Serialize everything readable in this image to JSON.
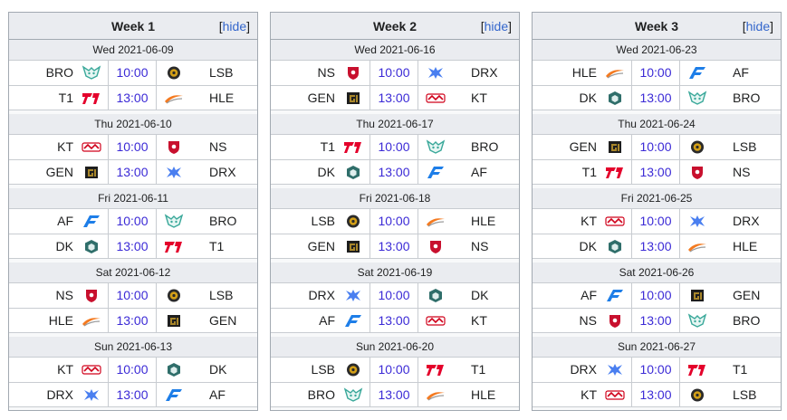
{
  "hide_label": "hide",
  "weeks": [
    {
      "title": "Week 1",
      "days": [
        {
          "date": "Wed 2021-06-09",
          "matches": [
            {
              "team1": "BRO",
              "time": "10:00",
              "team2": "LSB"
            },
            {
              "team1": "T1",
              "time": "13:00",
              "team2": "HLE"
            }
          ]
        },
        {
          "date": "Thu 2021-06-10",
          "matches": [
            {
              "team1": "KT",
              "time": "10:00",
              "team2": "NS"
            },
            {
              "team1": "GEN",
              "time": "13:00",
              "team2": "DRX"
            }
          ]
        },
        {
          "date": "Fri 2021-06-11",
          "matches": [
            {
              "team1": "AF",
              "time": "10:00",
              "team2": "BRO"
            },
            {
              "team1": "DK",
              "time": "13:00",
              "team2": "T1"
            }
          ]
        },
        {
          "date": "Sat 2021-06-12",
          "matches": [
            {
              "team1": "NS",
              "time": "10:00",
              "team2": "LSB"
            },
            {
              "team1": "HLE",
              "time": "13:00",
              "team2": "GEN"
            }
          ]
        },
        {
          "date": "Sun 2021-06-13",
          "matches": [
            {
              "team1": "KT",
              "time": "10:00",
              "team2": "DK"
            },
            {
              "team1": "DRX",
              "time": "13:00",
              "team2": "AF"
            }
          ]
        }
      ]
    },
    {
      "title": "Week 2",
      "days": [
        {
          "date": "Wed 2021-06-16",
          "matches": [
            {
              "team1": "NS",
              "time": "10:00",
              "team2": "DRX"
            },
            {
              "team1": "GEN",
              "time": "13:00",
              "team2": "KT"
            }
          ]
        },
        {
          "date": "Thu 2021-06-17",
          "matches": [
            {
              "team1": "T1",
              "time": "10:00",
              "team2": "BRO"
            },
            {
              "team1": "DK",
              "time": "13:00",
              "team2": "AF"
            }
          ]
        },
        {
          "date": "Fri 2021-06-18",
          "matches": [
            {
              "team1": "LSB",
              "time": "10:00",
              "team2": "HLE"
            },
            {
              "team1": "GEN",
              "time": "13:00",
              "team2": "NS"
            }
          ]
        },
        {
          "date": "Sat 2021-06-19",
          "matches": [
            {
              "team1": "DRX",
              "time": "10:00",
              "team2": "DK"
            },
            {
              "team1": "AF",
              "time": "13:00",
              "team2": "KT"
            }
          ]
        },
        {
          "date": "Sun 2021-06-20",
          "matches": [
            {
              "team1": "LSB",
              "time": "10:00",
              "team2": "T1"
            },
            {
              "team1": "BRO",
              "time": "13:00",
              "team2": "HLE"
            }
          ]
        }
      ]
    },
    {
      "title": "Week 3",
      "days": [
        {
          "date": "Wed 2021-06-23",
          "matches": [
            {
              "team1": "HLE",
              "time": "10:00",
              "team2": "AF"
            },
            {
              "team1": "DK",
              "time": "13:00",
              "team2": "BRO"
            }
          ]
        },
        {
          "date": "Thu 2021-06-24",
          "matches": [
            {
              "team1": "GEN",
              "time": "10:00",
              "team2": "LSB"
            },
            {
              "team1": "T1",
              "time": "13:00",
              "team2": "NS"
            }
          ]
        },
        {
          "date": "Fri 2021-06-25",
          "matches": [
            {
              "team1": "KT",
              "time": "10:00",
              "team2": "DRX"
            },
            {
              "team1": "DK",
              "time": "13:00",
              "team2": "HLE"
            }
          ]
        },
        {
          "date": "Sat 2021-06-26",
          "matches": [
            {
              "team1": "AF",
              "time": "10:00",
              "team2": "GEN"
            },
            {
              "team1": "NS",
              "time": "13:00",
              "team2": "BRO"
            }
          ]
        },
        {
          "date": "Sun 2021-06-27",
          "matches": [
            {
              "team1": "DRX",
              "time": "10:00",
              "team2": "T1"
            },
            {
              "team1": "KT",
              "time": "13:00",
              "team2": "LSB"
            }
          ]
        }
      ]
    }
  ],
  "team_colors": {
    "BRO": "#3aa89a",
    "LSB": "#d4a017",
    "T1": "#e4002b",
    "HLE": "#f47a20",
    "KT": "#d0021b",
    "NS": "#c8102e",
    "GEN": "#a8862a",
    "DRX": "#4a7ff0",
    "AF": "#1e7ee8",
    "DK": "#2f6e6a"
  },
  "team_icons": {
    "BRO": "wolf-logo-icon",
    "LSB": "sandbox-ball-logo-icon",
    "T1": "t1-logo-icon",
    "HLE": "hanwha-swoosh-logo-icon",
    "KT": "kt-rolster-logo-icon",
    "NS": "nongshim-shield-logo-icon",
    "GEN": "gen-g-logo-icon",
    "DRX": "drx-star-logo-icon",
    "AF": "afreeca-logo-icon",
    "DK": "damwon-hex-logo-icon"
  }
}
